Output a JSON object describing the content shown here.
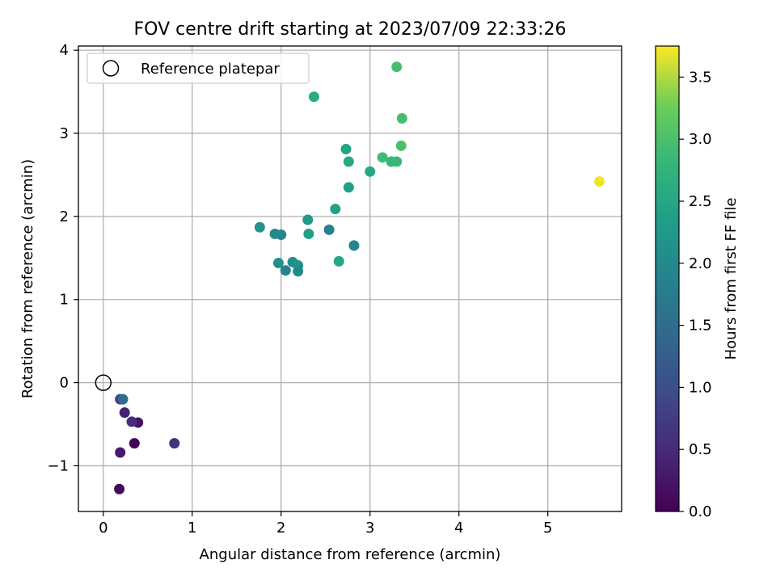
{
  "chart_data": {
    "type": "scatter",
    "title": "FOV centre drift starting at 2023/07/09 22:33:26",
    "xlabel": "Angular distance from reference (arcmin)",
    "ylabel": "Rotation from reference (arcmin)",
    "xlim": [
      -0.28,
      5.83
    ],
    "ylim": [
      -1.55,
      4.05
    ],
    "xticks": [
      0,
      1,
      2,
      3,
      4,
      5
    ],
    "xtick_labels": [
      "0",
      "1",
      "2",
      "3",
      "4",
      "5"
    ],
    "yticks": [
      -1,
      0,
      1,
      2,
      3,
      4
    ],
    "ytick_labels": [
      "−1",
      "0",
      "1",
      "2",
      "3",
      "4"
    ],
    "grid": true,
    "legend": {
      "placement": "top-left",
      "entries": [
        {
          "label": "Reference platepar",
          "marker": "open-circle"
        }
      ]
    },
    "reference_point": {
      "x": 0,
      "y": 0
    },
    "colorbar": {
      "label": "Hours from first FF file",
      "colormap": "viridis",
      "range": [
        0.0,
        3.75
      ],
      "ticks": [
        0.0,
        0.5,
        1.0,
        1.5,
        2.0,
        2.5,
        3.0,
        3.5
      ],
      "tick_labels": [
        "0.0",
        "0.5",
        "1.0",
        "1.5",
        "2.0",
        "2.5",
        "3.0",
        "3.5"
      ]
    },
    "points": [
      {
        "x": 0.18,
        "y": -1.28,
        "hours": 0.1
      },
      {
        "x": 0.35,
        "y": -0.73,
        "hours": 0.05
      },
      {
        "x": 0.19,
        "y": -0.84,
        "hours": 0.3
      },
      {
        "x": 0.39,
        "y": -0.48,
        "hours": 0.2
      },
      {
        "x": 0.32,
        "y": -0.47,
        "hours": 0.55
      },
      {
        "x": 0.24,
        "y": -0.36,
        "hours": 0.4
      },
      {
        "x": 0.8,
        "y": -0.73,
        "hours": 0.6
      },
      {
        "x": 0.19,
        "y": -0.2,
        "hours": 0.7
      },
      {
        "x": 0.22,
        "y": -0.2,
        "hours": 1.5
      },
      {
        "x": 1.76,
        "y": 1.87,
        "hours": 2.15
      },
      {
        "x": 1.93,
        "y": 1.79,
        "hours": 2.0
      },
      {
        "x": 2.0,
        "y": 1.78,
        "hours": 1.95
      },
      {
        "x": 1.97,
        "y": 1.44,
        "hours": 2.1
      },
      {
        "x": 2.05,
        "y": 1.35,
        "hours": 1.9
      },
      {
        "x": 2.13,
        "y": 1.45,
        "hours": 2.05
      },
      {
        "x": 2.19,
        "y": 1.41,
        "hours": 2.15
      },
      {
        "x": 2.19,
        "y": 1.34,
        "hours": 2.0
      },
      {
        "x": 2.3,
        "y": 1.96,
        "hours": 2.3
      },
      {
        "x": 2.31,
        "y": 1.79,
        "hours": 2.35
      },
      {
        "x": 2.37,
        "y": 3.44,
        "hours": 2.6
      },
      {
        "x": 2.54,
        "y": 1.84,
        "hours": 1.85
      },
      {
        "x": 2.61,
        "y": 2.09,
        "hours": 2.4
      },
      {
        "x": 2.65,
        "y": 1.46,
        "hours": 2.5
      },
      {
        "x": 2.73,
        "y": 2.81,
        "hours": 2.45
      },
      {
        "x": 2.76,
        "y": 2.66,
        "hours": 2.55
      },
      {
        "x": 2.76,
        "y": 2.35,
        "hours": 2.4
      },
      {
        "x": 2.82,
        "y": 1.65,
        "hours": 1.95
      },
      {
        "x": 3.0,
        "y": 2.54,
        "hours": 2.55
      },
      {
        "x": 3.14,
        "y": 2.71,
        "hours": 2.9
      },
      {
        "x": 3.24,
        "y": 2.66,
        "hours": 2.8
      },
      {
        "x": 3.3,
        "y": 2.66,
        "hours": 2.85
      },
      {
        "x": 3.3,
        "y": 3.8,
        "hours": 2.95
      },
      {
        "x": 3.35,
        "y": 2.85,
        "hours": 3.0
      },
      {
        "x": 3.36,
        "y": 3.18,
        "hours": 2.95
      },
      {
        "x": 5.58,
        "y": 2.42,
        "hours": 3.7
      }
    ]
  }
}
